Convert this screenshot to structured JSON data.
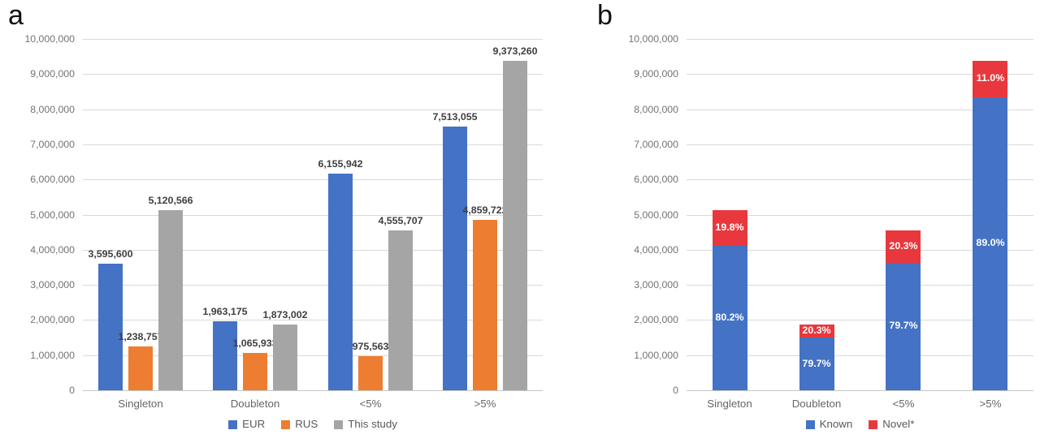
{
  "figure": {
    "panels": [
      {
        "letter": "a",
        "chart_data": {
          "type": "bar",
          "categories": [
            "Singleton",
            "Doubleton",
            "<5%",
            ">5%"
          ],
          "series": [
            {
              "name": "EUR",
              "color": "#4472C4",
              "values": [
                3595600,
                1963175,
                6155942,
                7513055
              ]
            },
            {
              "name": "RUS",
              "color": "#ED7D31",
              "values": [
                1238757,
                1065933,
                975563,
                4859722
              ]
            },
            {
              "name": "This study",
              "color": "#A5A5A5",
              "values": [
                5120566,
                1873002,
                4555707,
                9373260
              ]
            }
          ],
          "data_labels": [
            [
              "3,595,600",
              "1,963,175",
              "6,155,942",
              "7,513,055"
            ],
            [
              "1,238,757",
              "1,065,933",
              "975,563",
              "4,859,722"
            ],
            [
              "5,120,566",
              "1,873,002",
              "4,555,707",
              "9,373,260"
            ]
          ],
          "title": "",
          "xlabel": "",
          "ylabel": "",
          "ylim": [
            0,
            10000000
          ],
          "ytick_step": 1000000,
          "ytick_labels": [
            "0",
            "1,000,000",
            "2,000,000",
            "3,000,000",
            "4,000,000",
            "5,000,000",
            "6,000,000",
            "7,000,000",
            "8,000,000",
            "9,000,000",
            "10,000,000"
          ],
          "grid": true,
          "legend_position": "bottom",
          "legend": [
            "EUR",
            "RUS",
            "This study"
          ]
        }
      },
      {
        "letter": "b",
        "chart_data": {
          "type": "stacked-bar",
          "categories": [
            "Singleton",
            "Doubleton",
            "<5%",
            ">5%"
          ],
          "totals": [
            5120566,
            1873002,
            4555707,
            9373260
          ],
          "series": [
            {
              "name": "Known",
              "color": "#4472C4",
              "percents": [
                80.2,
                79.7,
                79.7,
                89.0
              ],
              "labels": [
                "80.2%",
                "79.7%",
                "79.7%",
                "89.0%"
              ]
            },
            {
              "name": "Novel*",
              "color": "#E8383D",
              "percents": [
                19.8,
                20.3,
                20.3,
                11.0
              ],
              "labels": [
                "19.8%",
                "20.3%",
                "20.3%",
                "11.0%"
              ]
            }
          ],
          "title": "",
          "xlabel": "",
          "ylabel": "",
          "ylim": [
            0,
            10000000
          ],
          "ytick_step": 1000000,
          "ytick_labels": [
            "0",
            "1,000,000",
            "2,000,000",
            "3,000,000",
            "4,000,000",
            "5,000,000",
            "6,000,000",
            "7,000,000",
            "8,000,000",
            "9,000,000",
            "10,000,000"
          ],
          "grid": true,
          "legend_position": "bottom",
          "legend": [
            "Known",
            "Novel*"
          ]
        }
      }
    ]
  }
}
